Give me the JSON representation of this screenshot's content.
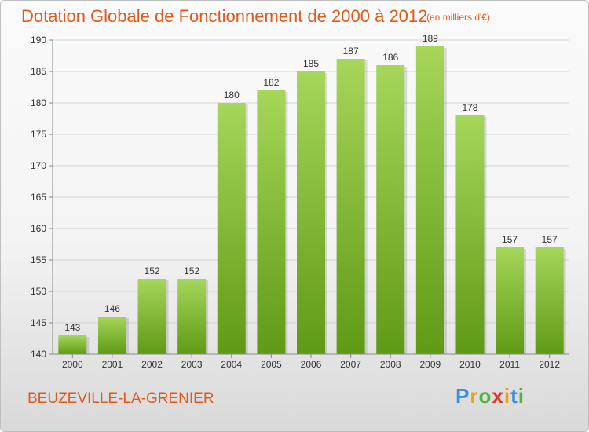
{
  "title": "Dotation Globale de Fonctionnement de 2000 à 2012",
  "subtitle": "(en milliers d'€)",
  "commune": "BEUZEVILLE-LA-GRENIER",
  "logo": {
    "letters": [
      "P",
      "r",
      "o",
      "x",
      "i",
      "t",
      "i"
    ],
    "colors": [
      "#3a8fd8",
      "#e8a21c",
      "#4db53c",
      "#d93a2a",
      "#e8a21c",
      "#3a8fd8",
      "#4db53c"
    ]
  },
  "colors": {
    "bar_top": "#a6d65a",
    "bar_bottom": "#5f9a15",
    "text_accent": "#e05a1c"
  },
  "chart_data": {
    "type": "bar",
    "categories": [
      "2000",
      "2001",
      "2002",
      "2003",
      "2004",
      "2005",
      "2006",
      "2007",
      "2008",
      "2009",
      "2010",
      "2011",
      "2012"
    ],
    "values": [
      143,
      146,
      152,
      152,
      180,
      182,
      185,
      187,
      186,
      189,
      178,
      157,
      157
    ],
    "data_labels": [
      "143",
      "146",
      "152",
      "152",
      "180",
      "182",
      "185",
      "187",
      "186",
      "189",
      "178",
      "157",
      "157"
    ],
    "ylim": [
      140,
      190
    ],
    "yticks": [
      140,
      145,
      150,
      155,
      160,
      165,
      170,
      175,
      180,
      185,
      190
    ],
    "grid": true,
    "legend": "none"
  }
}
